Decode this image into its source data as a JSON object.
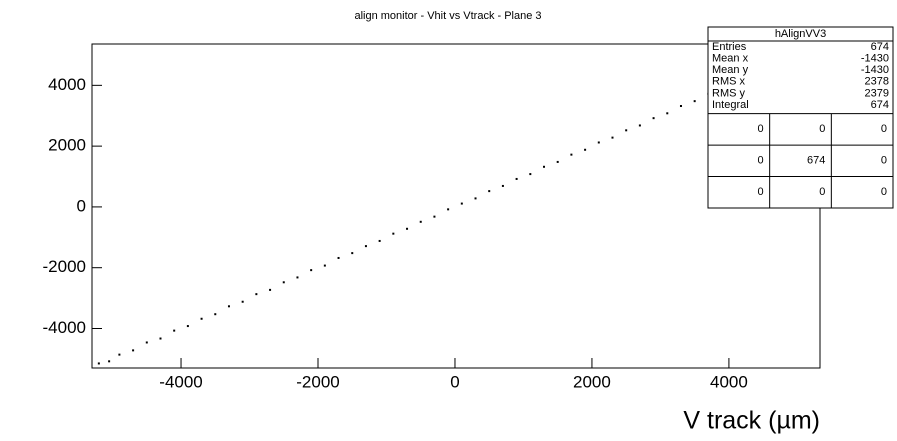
{
  "chart_data": {
    "type": "scatter",
    "title": "align monitor - Vhit vs Vtrack - Plane 3",
    "x_label": "V track (µm)",
    "xlim": [
      -5300,
      5330
    ],
    "ylim": [
      -5300,
      5360
    ],
    "xticks": [
      -4000,
      -2000,
      0,
      2000,
      4000
    ],
    "yticks": [
      -4000,
      -2000,
      0,
      2000,
      4000
    ],
    "color": "#000000",
    "x": [
      -5200,
      -5050,
      -4900,
      -4700,
      -4500,
      -4300,
      -4100,
      -3900,
      -3700,
      -3500,
      -3300,
      -3100,
      -2900,
      -2700,
      -2500,
      -2300,
      -2100,
      -1900,
      -1700,
      -1500,
      -1300,
      -1100,
      -900,
      -700,
      -500,
      -300,
      -100,
      100,
      300,
      500,
      700,
      900,
      1100,
      1300,
      1500,
      1700,
      1900,
      2100,
      2300,
      2500,
      2700,
      2900,
      3100,
      3300,
      3500,
      3700,
      3900
    ],
    "y": [
      -5150,
      -5080,
      -4860,
      -4720,
      -4460,
      -4330,
      -4070,
      -3920,
      -3680,
      -3530,
      -3270,
      -3120,
      -2870,
      -2730,
      -2480,
      -2320,
      -2080,
      -1930,
      -1680,
      -1520,
      -1290,
      -1120,
      -880,
      -720,
      -490,
      -320,
      -80,
      110,
      280,
      520,
      690,
      920,
      1080,
      1320,
      1480,
      1720,
      1880,
      2120,
      2280,
      2520,
      2680,
      2920,
      3080,
      3320,
      3480,
      3720,
      3870
    ],
    "stats": {
      "title": "hAlignVV3",
      "rows": [
        [
          "Entries",
          "674"
        ],
        [
          "Mean x",
          "-1430"
        ],
        [
          "Mean y",
          "-1430"
        ],
        [
          "RMS x",
          "2378"
        ],
        [
          "RMS y",
          "2379"
        ],
        [
          "Integral",
          "674"
        ]
      ],
      "grid": [
        [
          "0",
          "0",
          "0"
        ],
        [
          "0",
          "674",
          "0"
        ],
        [
          "0",
          "0",
          "0"
        ]
      ]
    }
  }
}
